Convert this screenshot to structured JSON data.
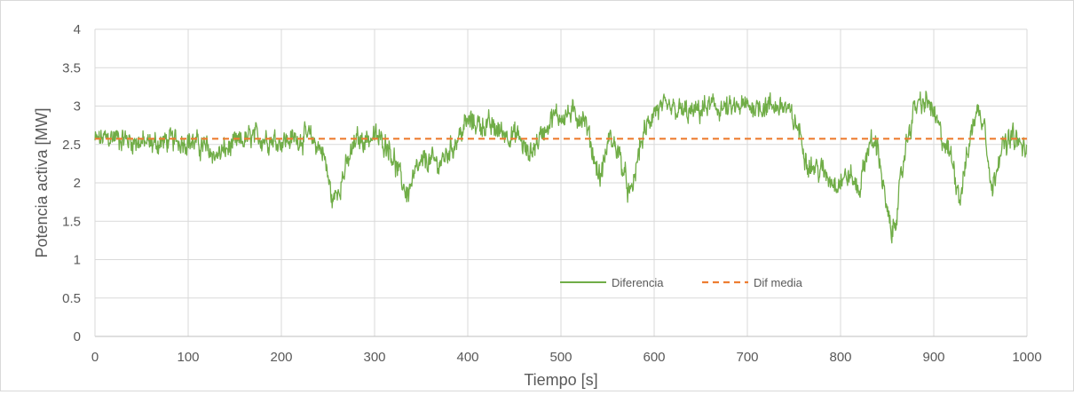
{
  "chart_data": {
    "type": "line",
    "title": "",
    "xlabel": "Tiempo [s]",
    "ylabel": "Potencia activa [MW]",
    "xlim": [
      0,
      1000
    ],
    "ylim": [
      0,
      4
    ],
    "x_ticks": [
      "0",
      "100",
      "200",
      "300",
      "400",
      "500",
      "600",
      "700",
      "800",
      "900",
      "1000"
    ],
    "y_ticks": [
      "0",
      "0.5",
      "1",
      "1.5",
      "2",
      "2.5",
      "3",
      "3.5",
      "4"
    ],
    "grid": true,
    "legend_position": "bottom-center inside plot",
    "series": [
      {
        "name": "Diferencia",
        "style": "solid",
        "color": "#70ad47",
        "noise_amplitude": 0.12,
        "points": [
          [
            0,
            2.55
          ],
          [
            20,
            2.6
          ],
          [
            40,
            2.55
          ],
          [
            60,
            2.5
          ],
          [
            80,
            2.55
          ],
          [
            100,
            2.55
          ],
          [
            120,
            2.45
          ],
          [
            130,
            2.35
          ],
          [
            150,
            2.5
          ],
          [
            170,
            2.6
          ],
          [
            200,
            2.55
          ],
          [
            230,
            2.6
          ],
          [
            245,
            2.4
          ],
          [
            255,
            1.75
          ],
          [
            265,
            2.05
          ],
          [
            280,
            2.55
          ],
          [
            300,
            2.6
          ],
          [
            315,
            2.5
          ],
          [
            325,
            2.15
          ],
          [
            335,
            1.85
          ],
          [
            345,
            2.15
          ],
          [
            355,
            2.3
          ],
          [
            370,
            2.25
          ],
          [
            385,
            2.5
          ],
          [
            400,
            2.8
          ],
          [
            420,
            2.75
          ],
          [
            440,
            2.65
          ],
          [
            455,
            2.6
          ],
          [
            465,
            2.35
          ],
          [
            475,
            2.55
          ],
          [
            490,
            2.85
          ],
          [
            510,
            2.9
          ],
          [
            525,
            2.85
          ],
          [
            535,
            2.35
          ],
          [
            542,
            2.05
          ],
          [
            552,
            2.6
          ],
          [
            562,
            2.4
          ],
          [
            570,
            2.0
          ],
          [
            575,
            1.8
          ],
          [
            585,
            2.5
          ],
          [
            600,
            2.95
          ],
          [
            620,
            2.95
          ],
          [
            640,
            2.9
          ],
          [
            660,
            3.0
          ],
          [
            680,
            2.95
          ],
          [
            700,
            3.0
          ],
          [
            720,
            3.0
          ],
          [
            740,
            3.0
          ],
          [
            755,
            2.7
          ],
          [
            765,
            2.25
          ],
          [
            780,
            2.15
          ],
          [
            795,
            2.0
          ],
          [
            810,
            2.1
          ],
          [
            820,
            1.9
          ],
          [
            830,
            2.5
          ],
          [
            840,
            2.5
          ],
          [
            848,
            1.75
          ],
          [
            855,
            1.3
          ],
          [
            862,
            1.75
          ],
          [
            870,
            2.5
          ],
          [
            880,
            3.0
          ],
          [
            895,
            3.05
          ],
          [
            910,
            2.55
          ],
          [
            920,
            2.3
          ],
          [
            928,
            1.8
          ],
          [
            935,
            2.3
          ],
          [
            945,
            2.95
          ],
          [
            955,
            2.8
          ],
          [
            962,
            1.85
          ],
          [
            970,
            2.4
          ],
          [
            985,
            2.6
          ],
          [
            1000,
            2.4
          ]
        ]
      },
      {
        "name": "Dif media",
        "style": "dashed",
        "color": "#ed7d31",
        "points": [
          [
            0,
            2.575
          ],
          [
            1000,
            2.575
          ]
        ]
      }
    ]
  }
}
